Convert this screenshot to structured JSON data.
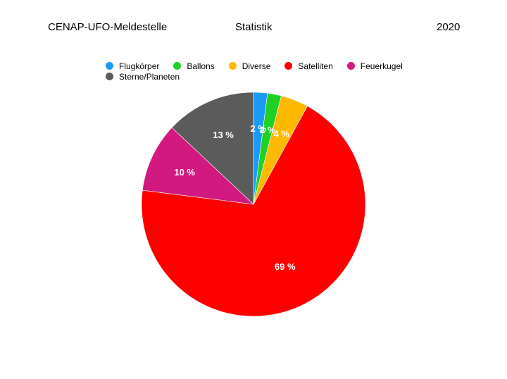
{
  "header": {
    "left": "CENAP-UFO-Meldestelle",
    "center": "Statistik",
    "right": "2020"
  },
  "chart_data": {
    "type": "pie",
    "legend_placement": "top",
    "slices": [
      {
        "name": "Flugkörper",
        "value": 2,
        "label": "2 %",
        "color": "#1a9af5"
      },
      {
        "name": "Ballons",
        "value": 2,
        "label": "2 %",
        "color": "#1fd025"
      },
      {
        "name": "Diverse",
        "value": 4,
        "label": "4 %",
        "color": "#fcb900"
      },
      {
        "name": "Satelliten",
        "value": 69,
        "label": "69 %",
        "color": "#fe0000"
      },
      {
        "name": "Feuerkugel",
        "value": 10,
        "label": "10 %",
        "color": "#d1197f"
      },
      {
        "name": "Sterne/Planeten",
        "value": 13,
        "label": "13 %",
        "color": "#5b5b5b"
      }
    ]
  }
}
